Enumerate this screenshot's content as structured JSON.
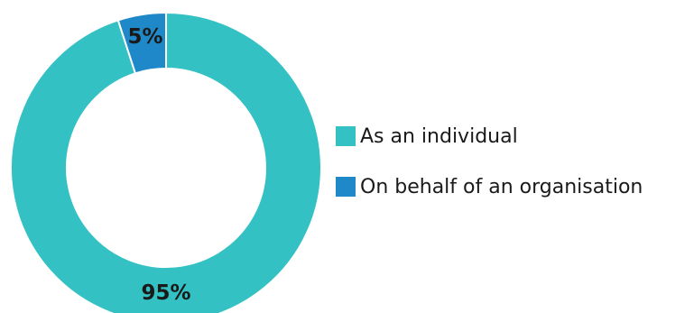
{
  "chart_data": {
    "type": "pie",
    "variant": "donut",
    "title": "",
    "series": [
      {
        "name": "As an individual",
        "value": 95,
        "label": "95%",
        "color": "#33c1c4"
      },
      {
        "name": "On behalf of an organisation",
        "value": 5,
        "label": "5%",
        "color": "#1e88c8"
      }
    ],
    "legend_position": "right"
  }
}
